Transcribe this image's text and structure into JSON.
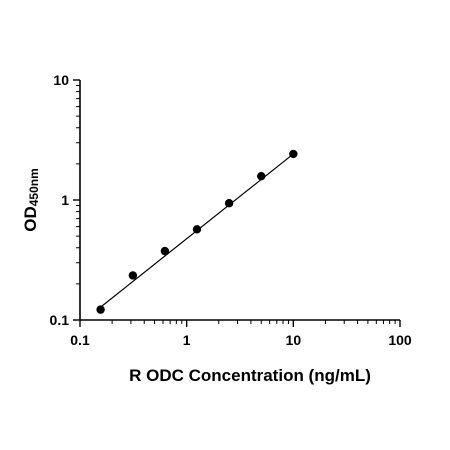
{
  "chart_data": {
    "type": "scatter",
    "title": "",
    "xlabel": "R ODC Concentration (ng/mL)",
    "ylabel_main": "OD",
    "ylabel_sub": "450nm",
    "x_scale": "log",
    "y_scale": "log",
    "xlim": [
      0.1,
      100
    ],
    "ylim": [
      0.1,
      10
    ],
    "x_ticks": [
      0.1,
      1,
      10,
      100
    ],
    "x_tick_labels": [
      "0.1",
      "1",
      "10",
      "100"
    ],
    "y_ticks": [
      0.1,
      1,
      10
    ],
    "y_tick_labels": [
      "0.1",
      "1",
      "10"
    ],
    "grid": false,
    "series": [
      {
        "points": [
          {
            "x": 0.156,
            "y": 0.122
          },
          {
            "x": 0.313,
            "y": 0.235
          },
          {
            "x": 0.625,
            "y": 0.375
          },
          {
            "x": 1.25,
            "y": 0.57
          },
          {
            "x": 2.5,
            "y": 0.94
          },
          {
            "x": 5,
            "y": 1.58
          },
          {
            "x": 10,
            "y": 2.42
          }
        ]
      }
    ],
    "fit_line": {
      "x": [
        0.156,
        10
      ],
      "y": [
        0.128,
        2.42
      ]
    }
  }
}
